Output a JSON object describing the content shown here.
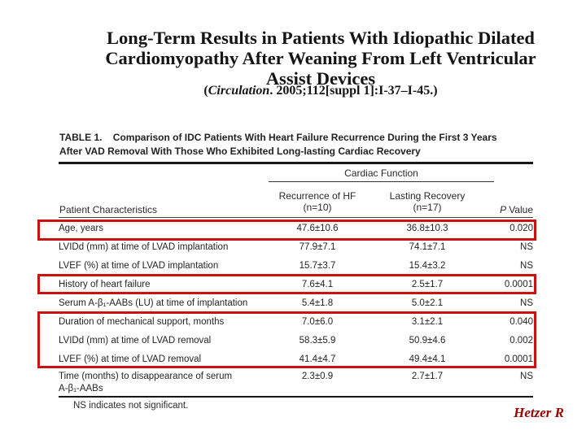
{
  "slide": {
    "accent_color": "#cc1111",
    "credit_color": "#990000",
    "credit": "Hetzer R",
    "title_lines": [
      "Long-Term Results in Patients With Idiopathic Dilated",
      "Cardiomyopathy After Weaning From Left Ventricular",
      "Assist Devices"
    ],
    "citation": {
      "open": "(",
      "journal": "Circulation",
      "rest": ". 2005;112[suppl 1]:I-37–I-45.)"
    }
  },
  "table": {
    "caption_line1": "TABLE 1.    Comparison of IDC Patients With Heart Failure Recurrence During the First 3 Years",
    "caption_line2": "After VAD Removal With Those Who Exhibited Long-lasting Cardiac Recovery",
    "spanner": "Cardiac Function",
    "headers": {
      "col1": "Patient Characteristics",
      "col2_line1": "Recurrence of HF",
      "col2_line2": "(n=10)",
      "col3_line1": "Lasting Recovery",
      "col3_line2": "(n=17)",
      "col4_italic": "P",
      "col4_rest": "Value"
    },
    "rows": [
      {
        "label": "Age, years",
        "recurrence": "47.6±10.6",
        "recovery": "36.8±10.3",
        "p": "0.020",
        "highlighted": true
      },
      {
        "label": "LVIDd (mm) at time of LVAD implantation",
        "recurrence": "77.9±7.1",
        "recovery": "74.1±7.1",
        "p": "NS",
        "highlighted": false
      },
      {
        "label": "LVEF (%) at time of LVAD implantation",
        "recurrence": "15.7±3.7",
        "recovery": "15.4±3.2",
        "p": "NS",
        "highlighted": false
      },
      {
        "label": "History of heart failure",
        "recurrence": "7.6±4.1",
        "recovery": "2.5±1.7",
        "p": "0.0001",
        "highlighted": true
      },
      {
        "label": "Serum A-β₁-AABs (LU) at time of implantation",
        "recurrence": "5.4±1.8",
        "recovery": "5.0±2.1",
        "p": "NS",
        "highlighted": false
      },
      {
        "label": "Duration of mechanical support, months",
        "recurrence": "7.0±6.0",
        "recovery": "3.1±2.1",
        "p": "0.040",
        "highlighted": true
      },
      {
        "label": "LVIDd (mm) at time of LVAD removal",
        "recurrence": "58.3±5.9",
        "recovery": "50.9±4.6",
        "p": "0.002",
        "highlighted": true
      },
      {
        "label": "LVEF (%) at time of LVAD removal",
        "recurrence": "41.4±4.7",
        "recovery": "49.4±4.1",
        "p": "0.0001",
        "highlighted": true
      },
      {
        "label": "Time (months) to disappearance of serum",
        "label_line2": "A-β₁-AABs",
        "recurrence": "2.3±0.9",
        "recovery": "2.7±1.7",
        "p": "NS",
        "highlighted": false
      }
    ],
    "footnote": "NS indicates not significant."
  }
}
